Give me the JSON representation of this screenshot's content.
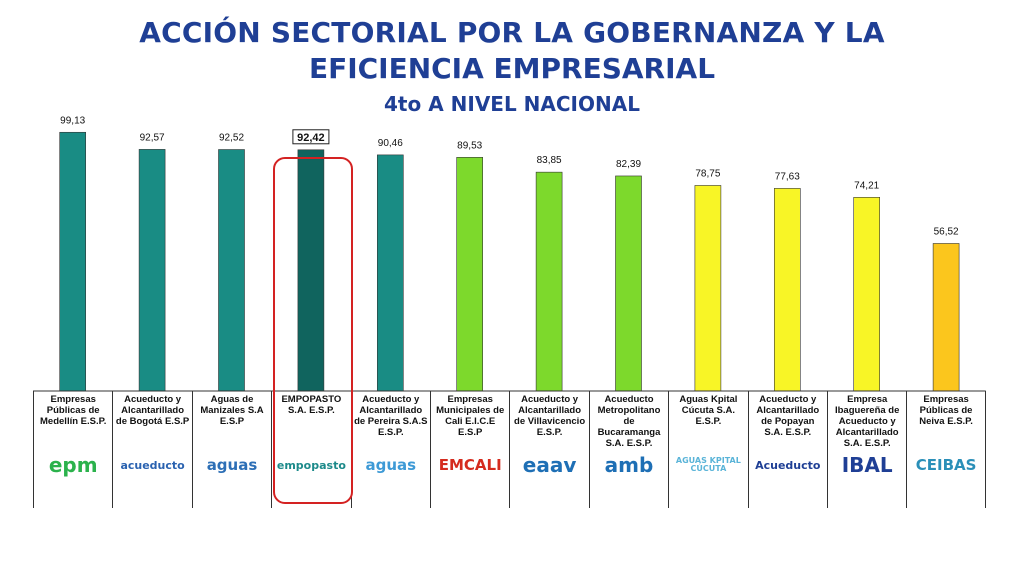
{
  "title_line1": "ACCIÓN SECTORIAL POR LA GOBERNANZA Y LA",
  "title_line2": "EFICIENCIA EMPRESARIAL",
  "subtitle": "4to A NIVEL NACIONAL",
  "chart_data": {
    "type": "bar",
    "categories": [
      "Empresas Públicas de Medellín E.S.P.",
      "Acueducto y Alcantarillado de Bogotá E.S.P",
      "Aguas de Manizales S.A E.S.P",
      "EMPOPASTO S.A. E.S.P.",
      "Acueducto y Alcantarillado de Pereira S.A.S E.S.P.",
      "Empresas Municipales de Cali E.I.C.E E.S.P",
      "Acueducto y Alcantarillado de Villavicencio E.S.P.",
      "Acueducto Metropolitano de Bucaramanga S.A. E.S.P.",
      "Aguas Kpital Cúcuta S.A. E.S.P.",
      "Acueducto y Alcantarillado de Popayan S.A. E.S.P.",
      "Empresa Ibaguereña de Acueducto y Alcantarillado S.A. E.S.P.",
      "Empresas Públicas de Neiva E.S.P."
    ],
    "values": [
      99.13,
      92.57,
      92.52,
      92.42,
      90.46,
      89.53,
      83.85,
      82.39,
      78.75,
      77.63,
      74.21,
      56.52
    ],
    "value_labels": [
      "99,13",
      "92,57",
      "92,52",
      "92,42",
      "90,46",
      "89,53",
      "83,85",
      "82,39",
      "78,75",
      "77,63",
      "74,21",
      "56,52"
    ],
    "bar_colors": [
      "#198c84",
      "#198c84",
      "#198c84",
      "#10645e",
      "#198c84",
      "#7dd92c",
      "#7dd92c",
      "#7dd92c",
      "#f8f526",
      "#f8f526",
      "#f8f526",
      "#fbc61d"
    ],
    "highlight_index": 3,
    "ylim": [
      0,
      100
    ],
    "grid": false,
    "legend": false
  },
  "logos": [
    {
      "name": "epm-logo",
      "text": "epm",
      "color": "#2bb24c"
    },
    {
      "name": "acueducto-bogota-logo",
      "text": "acueducto",
      "color": "#2a62b0"
    },
    {
      "name": "aguas-manizales-logo",
      "text": "aguas",
      "color": "#2d6fb6"
    },
    {
      "name": "empopasto-logo",
      "text": "empopasto",
      "color": "#1c8a8a"
    },
    {
      "name": "aguas-pereira-logo",
      "text": "aguas",
      "color": "#3e9ad6"
    },
    {
      "name": "emcali-logo",
      "text": "EMCALI",
      "color": "#d52b1e"
    },
    {
      "name": "eaav-logo",
      "text": "eaav",
      "color": "#1e6fb5"
    },
    {
      "name": "amb-logo",
      "text": "amb",
      "color": "#1e6fb5"
    },
    {
      "name": "aguas-kpital-logo",
      "text": "AGUAS KPITAL CÚCUTA",
      "color": "#5ab4d8"
    },
    {
      "name": "acueducto-popayan-logo",
      "text": "Acueducto",
      "color": "#1f3f95"
    },
    {
      "name": "ibal-logo",
      "text": "IBAL",
      "color": "#1f3f95"
    },
    {
      "name": "ceibas-logo",
      "text": "CEIBAS",
      "color": "#2a8fb8"
    }
  ]
}
